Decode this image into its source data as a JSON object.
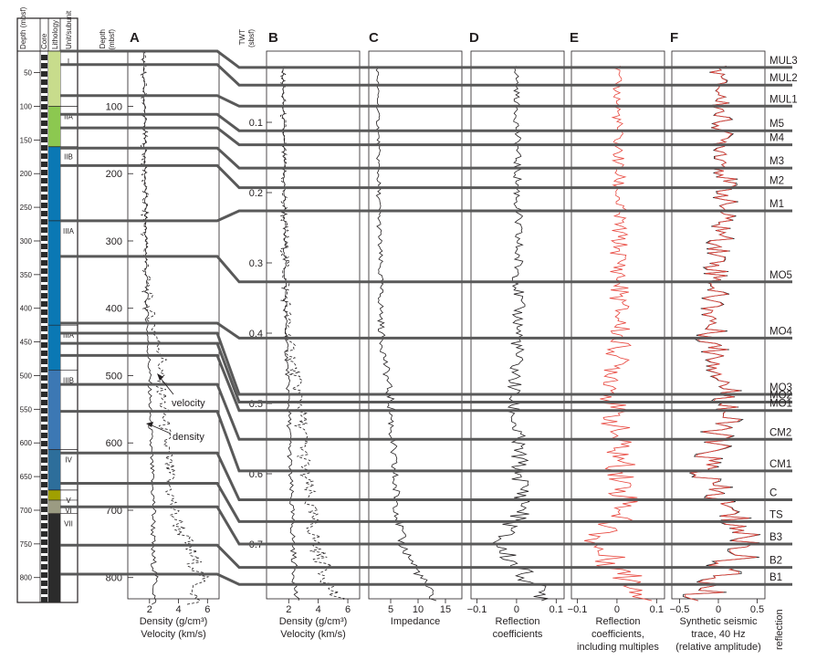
{
  "figure": {
    "column_headers": [
      "Depth (mbsf)",
      "Core",
      "Lithology",
      "Unit/subunit"
    ],
    "depth_header": [
      "Depth",
      "(mbsf)"
    ],
    "twt_header": [
      "TWT",
      "(sbsf)"
    ],
    "panel_letters": [
      "A",
      "B",
      "C",
      "D",
      "E",
      "F"
    ],
    "annotations": {
      "velocity": "velocity",
      "density": "density"
    },
    "x_labels": {
      "A": [
        "Density (g/cm³)",
        "Velocity (km/s)"
      ],
      "B": [
        "Density (g/cm³)",
        "Velocity (km/s)"
      ],
      "C": [
        "Impedance"
      ],
      "D": [
        "Reflection",
        "coefficients"
      ],
      "E": [
        "Reflection",
        "coefficients,",
        "including multiples"
      ],
      "F": [
        "Synthetic seismic",
        "trace, 40 Hz",
        "(relative amplitude)"
      ]
    },
    "reflection_axis_label": "reflection",
    "colors": {
      "line": "#595959",
      "ink": "#231f20",
      "multiples": "#e8453c",
      "unit_I": "#c8dc8c",
      "unit_IIA": "#8cc850",
      "unit_II_III": "#0a78b4",
      "unit_IIIB_light": "#3c78b4",
      "unit_IV": "#2d6e9b",
      "unit_V": "#a0a000",
      "unit_VI": "#9b9b82",
      "unit_VII": "#2b2b2b"
    }
  },
  "chart_data": [
    {
      "type": "lithology-column",
      "depth_ticks": [
        50,
        100,
        150,
        200,
        250,
        300,
        350,
        400,
        450,
        500,
        550,
        600,
        650,
        700,
        750,
        800
      ],
      "units": [
        {
          "name": "I",
          "top": 18,
          "base": 100
        },
        {
          "name": "IIA",
          "top": 100,
          "base": 160
        },
        {
          "name": "IIB",
          "top": 160,
          "base": 270
        },
        {
          "name": "IIIA",
          "top": 270,
          "base": 425
        },
        {
          "name": "IIIA",
          "top": 425,
          "base": 492
        },
        {
          "name": "IIIB",
          "top": 492,
          "base": 610
        },
        {
          "name": "IV",
          "top": 610,
          "base": 670
        },
        {
          "name": "V",
          "top": 670,
          "base": 685
        },
        {
          "name": "VI",
          "top": 685,
          "base": 705
        },
        {
          "name": "VII",
          "top": 705,
          "base": 860
        }
      ]
    },
    {
      "type": "line",
      "panel": "A",
      "y_label": "Depth (mbsf)",
      "y_ticks": [
        100,
        200,
        300,
        400,
        500,
        600,
        700,
        800
      ],
      "x_ticks": [
        2,
        4,
        6
      ],
      "xlim": [
        0.5,
        6.8
      ],
      "series": [
        {
          "name": "density",
          "style": "solid",
          "depth": [
            18,
            100,
            200,
            300,
            400,
            450,
            500,
            560,
            620,
            700,
            760,
            800,
            840
          ],
          "values": [
            1.55,
            1.65,
            1.7,
            1.75,
            1.8,
            1.9,
            2.0,
            2.05,
            2.1,
            2.3,
            2.2,
            2.4,
            2.3
          ]
        },
        {
          "name": "velocity",
          "style": "dashed",
          "depth": [
            18,
            100,
            200,
            300,
            400,
            450,
            470,
            500,
            560,
            620,
            700,
            760,
            800,
            840
          ],
          "values": [
            1.6,
            1.62,
            1.65,
            1.7,
            1.9,
            2.6,
            2.9,
            2.7,
            3.0,
            3.2,
            3.6,
            4.8,
            5.5,
            5.0
          ]
        }
      ]
    },
    {
      "type": "line",
      "panel": "B",
      "y_label": "TWT (sbsf)",
      "y_ticks": [
        0.1,
        0.2,
        0.3,
        0.4,
        0.5,
        0.6,
        0.7
      ],
      "x_ticks": [
        2,
        4,
        6
      ],
      "series": [
        {
          "name": "density",
          "style": "solid",
          "twt": [
            0.02,
            0.2,
            0.4,
            0.5,
            0.6,
            0.7,
            0.78
          ],
          "values": [
            1.6,
            1.7,
            1.8,
            2.0,
            2.1,
            2.3,
            2.5
          ]
        },
        {
          "name": "velocity",
          "style": "dashed",
          "twt": [
            0.02,
            0.2,
            0.4,
            0.5,
            0.6,
            0.7,
            0.78
          ],
          "values": [
            1.6,
            1.65,
            1.9,
            2.8,
            3.1,
            3.8,
            5.2
          ]
        }
      ]
    },
    {
      "type": "line",
      "panel": "C",
      "x_ticks": [
        5,
        10,
        15
      ],
      "twt": [
        0.02,
        0.2,
        0.4,
        0.5,
        0.6,
        0.7,
        0.78
      ],
      "values": [
        2.6,
        2.8,
        3.3,
        5.0,
        5.6,
        7.0,
        13.0
      ]
    },
    {
      "type": "line",
      "panel": "D",
      "x_ticks": [
        -0.1,
        0,
        0.1
      ],
      "twt": [
        0.02,
        0.4,
        0.5,
        0.65,
        0.7,
        0.78
      ],
      "values": [
        0,
        0.005,
        -0.01,
        0.02,
        -0.05,
        0.08
      ]
    },
    {
      "type": "line",
      "panel": "E",
      "x_ticks": [
        -0.1,
        0,
        0.1
      ],
      "twt": [
        0.02,
        0.4,
        0.5,
        0.65,
        0.7,
        0.78
      ],
      "values": [
        0,
        0.008,
        -0.012,
        0.025,
        -0.06,
        0.09
      ]
    },
    {
      "type": "line",
      "panel": "F",
      "x_ticks": [
        -0.5,
        0,
        0.5
      ],
      "twt": [
        0.02,
        0.2,
        0.4,
        0.5,
        0.6,
        0.7,
        0.78
      ],
      "values": [
        0,
        0.1,
        -0.1,
        0.15,
        -0.2,
        0.4,
        -0.3
      ]
    }
  ],
  "reflectors": [
    {
      "name": "MUL3",
      "depth": 18,
      "twt": 0.022
    },
    {
      "name": "MUL2",
      "depth": 38,
      "twt": 0.047
    },
    {
      "name": "MUL1",
      "depth": 84,
      "twt": 0.077
    },
    {
      "name": "M5",
      "depth": 112,
      "twt": 0.112
    },
    {
      "name": "M4",
      "depth": 132,
      "twt": 0.132
    },
    {
      "name": "M3",
      "depth": 162,
      "twt": 0.165
    },
    {
      "name": "M2",
      "depth": 188,
      "twt": 0.193
    },
    {
      "name": "M1",
      "depth": 270,
      "twt": 0.226
    },
    {
      "name": "MO5",
      "depth": 323,
      "twt": 0.327
    },
    {
      "name": "MO4",
      "depth": 422,
      "twt": 0.407
    },
    {
      "name": "MO3",
      "depth": 437,
      "twt": 0.487
    },
    {
      "name": "MO2",
      "depth": 452,
      "twt": 0.498
    },
    {
      "name": "MO1",
      "depth": 470,
      "twt": 0.51
    },
    {
      "name": "CM2",
      "depth": 513,
      "twt": 0.551
    },
    {
      "name": "CM1",
      "depth": 553,
      "twt": 0.596
    },
    {
      "name": "C",
      "depth": 615,
      "twt": 0.637
    },
    {
      "name": "TS",
      "depth": 660,
      "twt": 0.668
    },
    {
      "name": "B3",
      "depth": 695,
      "twt": 0.7
    },
    {
      "name": "B2",
      "depth": 752,
      "twt": 0.733
    },
    {
      "name": "B1",
      "depth": 795,
      "twt": 0.757
    }
  ]
}
